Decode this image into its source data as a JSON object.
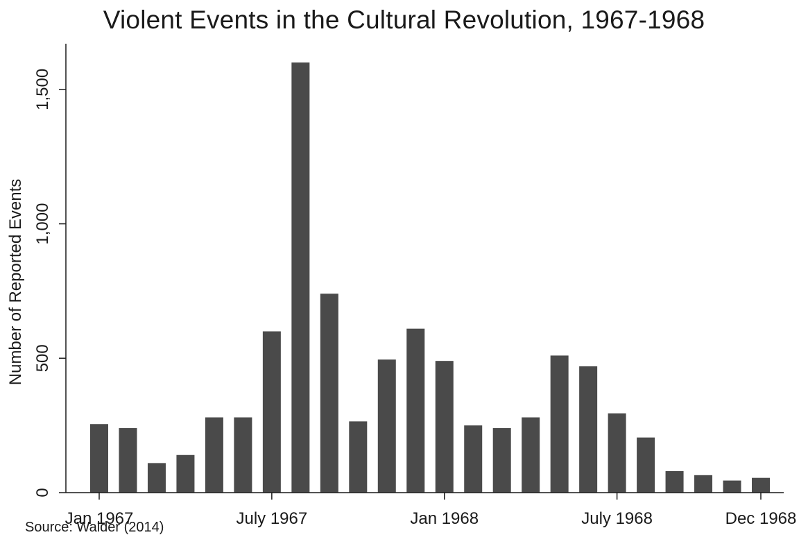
{
  "chart_data": {
    "type": "bar",
    "title": "Violent Events in the Cultural Revolution, 1967-1968",
    "ylabel": "Number of Reported Events",
    "xlabel": "",
    "source": "Source: Walder (2014)",
    "ylim": [
      0,
      1670
    ],
    "yticks": [
      0,
      500,
      1000,
      1500
    ],
    "ytick_labels": [
      "0",
      "500",
      "1,000",
      "1,500"
    ],
    "xtick_labels": [
      {
        "index": 0,
        "label": "Jan 1967"
      },
      {
        "index": 6,
        "label": "July 1967"
      },
      {
        "index": 12,
        "label": "Jan 1968"
      },
      {
        "index": 18,
        "label": "July 1968"
      },
      {
        "index": 23,
        "label": "Dec 1968"
      }
    ],
    "categories": [
      "Jan 1967",
      "Feb 1967",
      "Mar 1967",
      "Apr 1967",
      "May 1967",
      "Jun 1967",
      "Jul 1967",
      "Aug 1967",
      "Sep 1967",
      "Oct 1967",
      "Nov 1967",
      "Dec 1967",
      "Jan 1968",
      "Feb 1968",
      "Mar 1968",
      "Apr 1968",
      "May 1968",
      "Jun 1968",
      "Jul 1968",
      "Aug 1968",
      "Sep 1968",
      "Oct 1968",
      "Nov 1968",
      "Dec 1968"
    ],
    "values": [
      255,
      240,
      110,
      140,
      280,
      280,
      600,
      1600,
      740,
      265,
      495,
      610,
      490,
      250,
      240,
      280,
      510,
      470,
      295,
      205,
      80,
      65,
      45,
      55
    ],
    "bar_color": "#4a4a4a",
    "grid": false,
    "legend": "none"
  }
}
